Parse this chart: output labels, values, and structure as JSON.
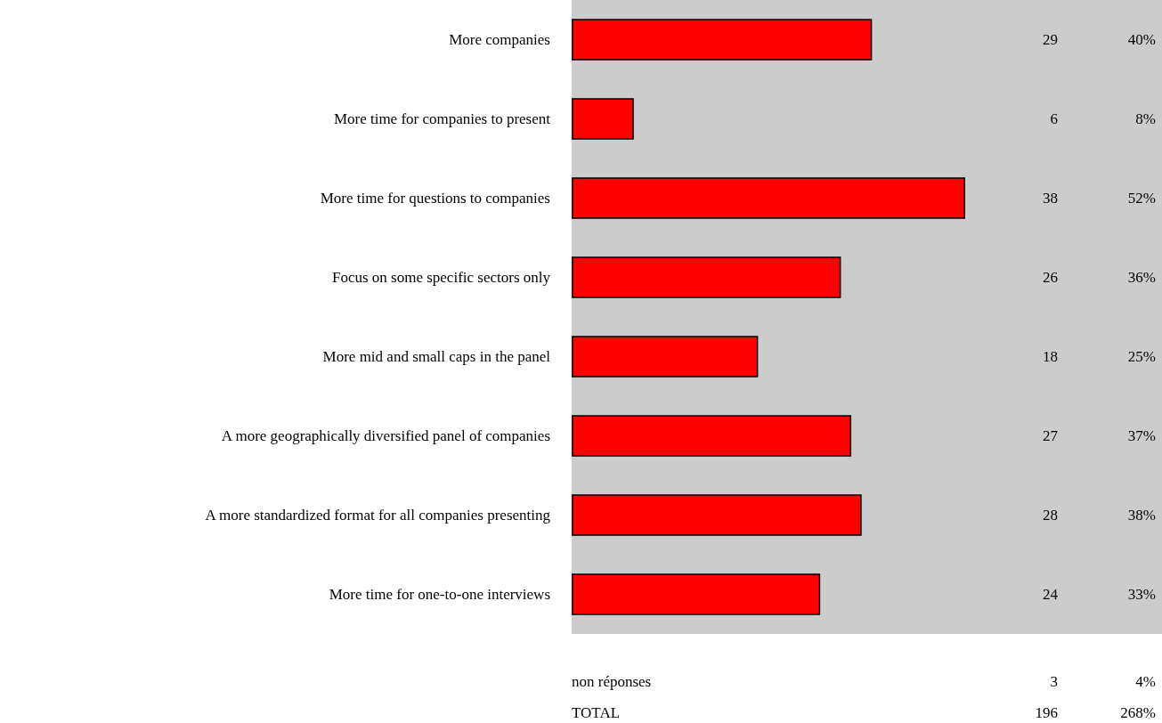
{
  "chart_data": {
    "type": "bar",
    "orientation": "horizontal",
    "categories": [
      "More companies",
      "More time for companies to present",
      "More time for questions to companies",
      "Focus on some specific sectors only",
      "More mid and small caps in the panel",
      "A more geographically diversified panel of companies",
      "A more standardized format for all companies presenting",
      "More time for one-to-one interviews"
    ],
    "values": [
      29,
      6,
      38,
      26,
      18,
      27,
      28,
      24
    ],
    "color": "#ff0000",
    "data_labels": true,
    "annotations": [
      "40%",
      "8%",
      "52%",
      "36%",
      "25%",
      "37%",
      "38%",
      "33%",
      "non réponses",
      "3",
      "4%",
      "TOTAL",
      "196",
      "268%"
    ]
  }
}
